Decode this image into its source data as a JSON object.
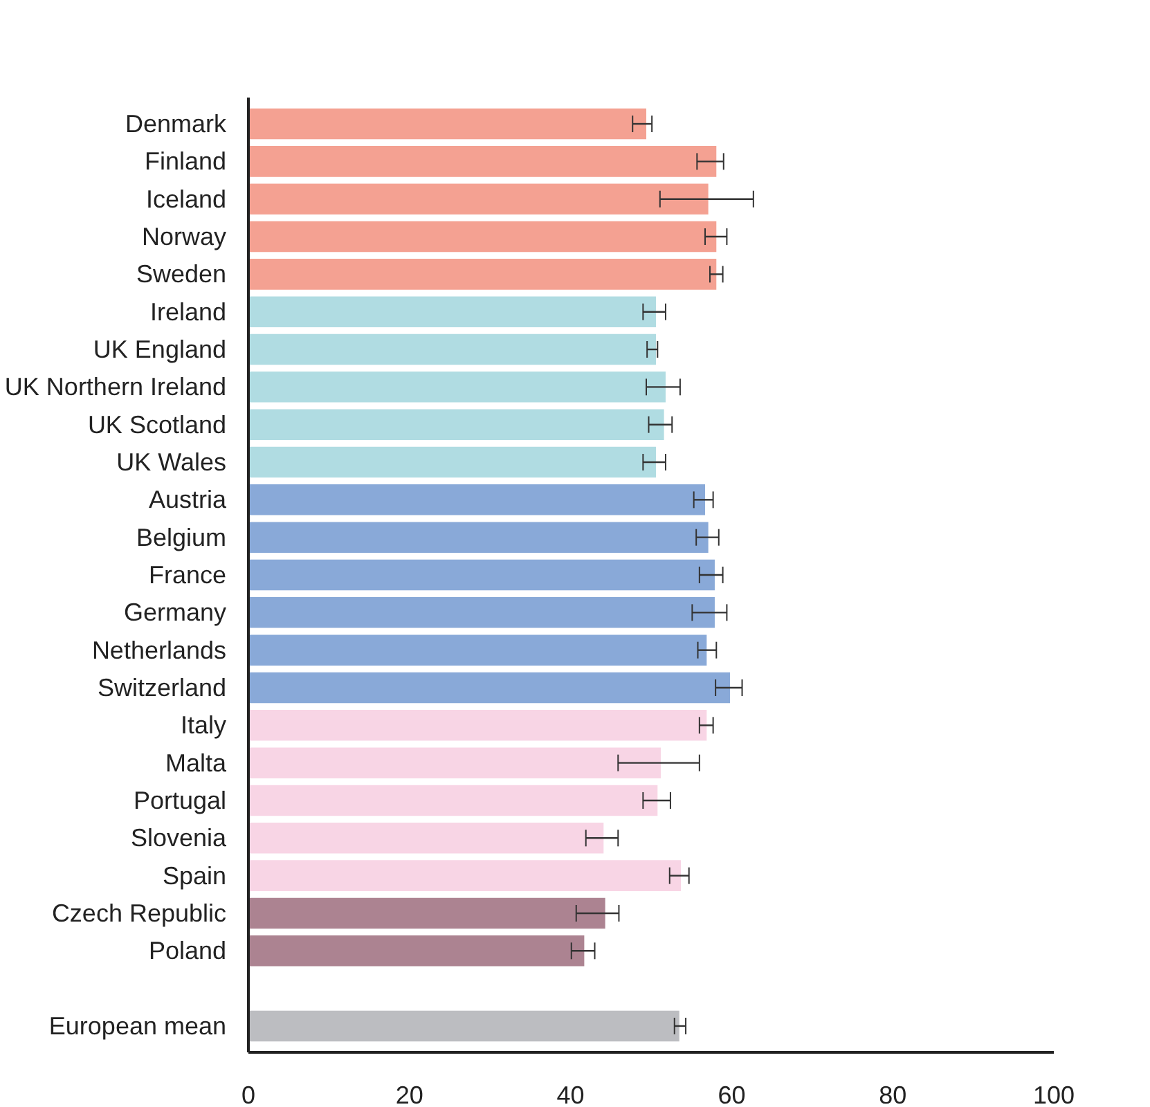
{
  "chart_data": {
    "type": "bar",
    "orientation": "horizontal",
    "categories": [
      "Denmark",
      "Finland",
      "Iceland",
      "Norway",
      "Sweden",
      "Ireland",
      "UK England",
      "UK Northern Ireland",
      "UK Scotland",
      "UK Wales",
      "Austria",
      "Belgium",
      "France",
      "Germany",
      "Netherlands",
      "Switzerland",
      "Italy",
      "Malta",
      "Portugal",
      "Slovenia",
      "Spain",
      "Czech Republic",
      "Poland",
      null,
      "European mean"
    ],
    "values": [
      49.4,
      58.1,
      57.1,
      58.1,
      58.1,
      50.6,
      50.6,
      51.8,
      51.6,
      50.6,
      56.7,
      57.1,
      57.9,
      57.9,
      56.9,
      59.8,
      56.9,
      51.2,
      50.8,
      44.1,
      53.7,
      44.3,
      41.7,
      null,
      53.5
    ],
    "errors": [
      [
        47.7,
        50.1
      ],
      [
        55.7,
        59.0
      ],
      [
        51.1,
        62.7
      ],
      [
        56.7,
        59.4
      ],
      [
        57.3,
        58.9
      ],
      [
        49.0,
        51.8
      ],
      [
        49.5,
        50.8
      ],
      [
        49.4,
        53.6
      ],
      [
        49.7,
        52.6
      ],
      [
        49.0,
        51.8
      ],
      [
        55.3,
        57.7
      ],
      [
        55.6,
        58.4
      ],
      [
        56.0,
        58.9
      ],
      [
        55.1,
        59.4
      ],
      [
        55.8,
        58.1
      ],
      [
        58.0,
        61.3
      ],
      [
        56.0,
        57.7
      ],
      [
        45.9,
        56.0
      ],
      [
        49.0,
        52.4
      ],
      [
        41.9,
        45.9
      ],
      [
        52.3,
        54.7
      ],
      [
        40.7,
        46.0
      ],
      [
        40.1,
        43.0
      ],
      null,
      [
        52.9,
        54.3
      ]
    ],
    "colors": [
      "#f4a192",
      "#f4a192",
      "#f4a192",
      "#f4a192",
      "#f4a192",
      "#b0dce2",
      "#b0dce2",
      "#b0dce2",
      "#b0dce2",
      "#b0dce2",
      "#89a9d8",
      "#89a9d8",
      "#89a9d8",
      "#89a9d8",
      "#89a9d8",
      "#89a9d8",
      "#f8d5e5",
      "#f8d5e5",
      "#f8d5e5",
      "#f8d5e5",
      "#f8d5e5",
      "#ac8391",
      "#ac8391",
      "#ffffff",
      "#bcbdc1"
    ],
    "xlim": [
      0,
      100
    ],
    "xticks": [
      0,
      20,
      40,
      60,
      80,
      100
    ],
    "grid": false
  }
}
